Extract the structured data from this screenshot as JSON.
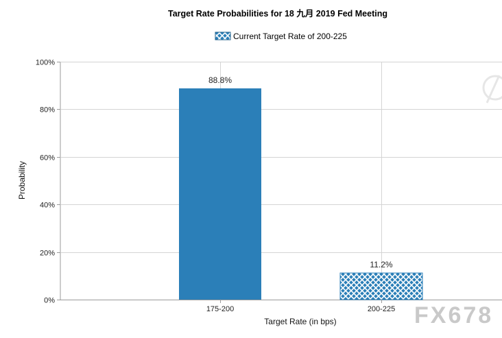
{
  "chart_data": {
    "type": "bar",
    "title": "Target Rate Probabilities for 18 九月 2019 Fed Meeting",
    "legend": {
      "label": "Current Target Rate of 200-225",
      "placement": "top-center"
    },
    "categories": [
      "175-200",
      "200-225"
    ],
    "values": [
      88.8,
      11.2
    ],
    "data_labels": [
      "88.8%",
      "11.2%"
    ],
    "patterns": [
      "solid",
      "crosshatch"
    ],
    "xlabel": "Target Rate (in bps)",
    "ylabel": "Probability",
    "ylim": [
      0,
      100
    ],
    "yticks": [
      0,
      20,
      40,
      60,
      80,
      100
    ],
    "ytick_labels": [
      "0%",
      "20%",
      "40%",
      "60%",
      "80%",
      "100%"
    ],
    "grid": true,
    "colors": {
      "bar": "#2b7fb8",
      "grid": "#d4d4d4",
      "axis": "#9a9a9a",
      "hatch": "#ffffff"
    }
  },
  "watermark": {
    "text": "FX678"
  }
}
